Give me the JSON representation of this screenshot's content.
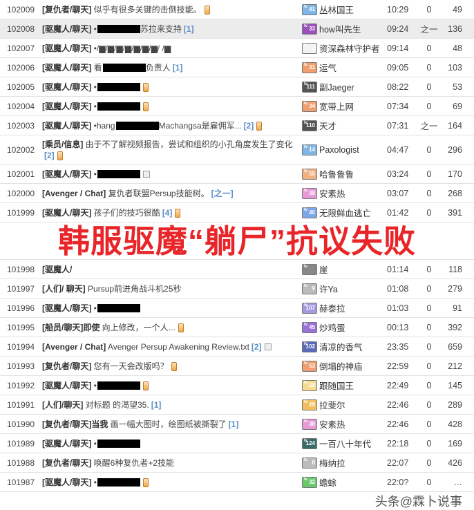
{
  "rows": [
    {
      "id": "102009",
      "cat": "[复仇者/聊天]",
      "text": "似乎有很多关键的击倒技能。",
      "redact": false,
      "tail": "",
      "count": "",
      "icon": "memo",
      "level": "41",
      "lvcolor": "#7fb6e6",
      "name": "丛林国王",
      "time": "10:29",
      "replies": "0",
      "views": "49"
    },
    {
      "id": "102008",
      "cat": "[驱魔人/聊天]",
      "text": "•",
      "redact": true,
      "tail": "苏拉来支持",
      "count": "[1]",
      "icon": "",
      "level": "33",
      "lvcolor": "#9a52b8",
      "name": "how叫先生",
      "time": "09:24",
      "replies": "之一",
      "views": "136",
      "hl": true
    },
    {
      "id": "102007",
      "cat": "[驱魔人/聊天]",
      "text": "•/▆/▆/▆/▆/▆/▆/▆/ /▆",
      "redact": false,
      "tail": "",
      "count": "",
      "icon": "",
      "level": "2",
      "lvcolor": "#f2f2f2",
      "name": "资深森林守护者",
      "time": "09:14",
      "replies": "0",
      "views": "48"
    },
    {
      "id": "102006",
      "cat": "[驱魔人/聊天]",
      "text": "看",
      "redact": true,
      "tail": "负责人",
      "count": "[1]",
      "icon": "",
      "level": "31",
      "lvcolor": "#f0a070",
      "name": "运气",
      "time": "09:05",
      "replies": "0",
      "views": "103"
    },
    {
      "id": "102005",
      "cat": "[驱魔人/聊天]",
      "text": "•",
      "redact": true,
      "tail": "",
      "count": "",
      "icon": "memo",
      "level": "111",
      "lvcolor": "#555",
      "name": "副Jaeger",
      "time": "08:22",
      "replies": "0",
      "views": "53"
    },
    {
      "id": "102004",
      "cat": "[驱魔人/聊天]",
      "text": "•",
      "redact": true,
      "tail": "",
      "count": "",
      "icon": "memo",
      "level": "34",
      "lvcolor": "#f0a070",
      "name": "宽带上网",
      "time": "07:34",
      "replies": "0",
      "views": "69"
    },
    {
      "id": "102003",
      "cat": "[驱魔人/聊天]",
      "text": " •hang",
      "redact": true,
      "tail": "Machangsa是雇佣军...",
      "count": "[2]",
      "icon": "memo",
      "level": "110",
      "lvcolor": "#555",
      "name": "天才",
      "time": "07:31",
      "replies": "之一",
      "views": "164"
    },
    {
      "id": "102002",
      "cat": "[乘员/信息]",
      "text": "由于不了解视频报告，尝试和组织的小孔角度发生了变化",
      "redact": false,
      "tail": "",
      "count": "[2]",
      "icon": "memo",
      "level": "14",
      "lvcolor": "#7fb6e6",
      "name": "Paxologist",
      "time": "04:47",
      "replies": "0",
      "views": "296",
      "tall": true
    },
    {
      "id": "102001",
      "cat": "[驱魔人/聊天]",
      "text": "•",
      "redact": true,
      "tail": "",
      "count": "",
      "icon": "image",
      "level": "55",
      "lvcolor": "#f0b080",
      "name": "哈鲁鲁鲁",
      "time": "03:24",
      "replies": "0",
      "views": "170"
    },
    {
      "id": "102000",
      "cat": "[Avenger / Chat]",
      "text": "复仇者联盟Persup技能树。",
      "redact": false,
      "tail": "",
      "count": "[之一]",
      "icon": "",
      "level": "38",
      "lvcolor": "#e79ad8",
      "name": "安素热",
      "time": "03:07",
      "replies": "0",
      "views": "268"
    },
    {
      "id": "101999",
      "cat": "[驱魔人/聊天]",
      "text": "孩子们的技巧很酷",
      "redact": false,
      "tail": "",
      "count": "[4]",
      "icon": "memo",
      "level": "40",
      "lvcolor": "#7fa6e6",
      "name": "无限鲜血逃亡",
      "time": "01:42",
      "replies": "0",
      "views": "391"
    },
    {
      "id": "101998",
      "cat": "[驱魔人/",
      "text": "",
      "redact": false,
      "tail": "",
      "count": "",
      "icon": "",
      "level": "",
      "lvcolor": "#888",
      "name": "崖",
      "time": "01:14",
      "replies": "0",
      "views": "118"
    },
    {
      "id": "101997",
      "cat": "[人们/ 聊天]",
      "text": "Pursup前进角战斗机25秒",
      "redact": false,
      "tail": "",
      "count": "",
      "icon": "",
      "level": "9",
      "lvcolor": "#bbb",
      "name": "许Ya",
      "time": "01:08",
      "replies": "0",
      "views": "279"
    },
    {
      "id": "101996",
      "cat": "[驱魔人/聊天]",
      "text": "•",
      "redact": true,
      "tail": "",
      "count": "",
      "icon": "",
      "level": "107",
      "lvcolor": "#a89ae0",
      "name": "赫泰拉",
      "time": "01:03",
      "replies": "0",
      "views": "91"
    },
    {
      "id": "101995",
      "cat": "[船员/聊天]即使",
      "text": "向上修改，一个人...",
      "redact": false,
      "tail": "",
      "count": "",
      "icon": "memo",
      "level": "45",
      "lvcolor": "#9a72d8",
      "name": "炒鸡蛋",
      "time": "00:13",
      "replies": "0",
      "views": "392"
    },
    {
      "id": "101994",
      "cat": "[Avenger / Chat]",
      "text": "Avenger Persup Awakening Review.txt",
      "redact": false,
      "tail": "",
      "count": "[2]",
      "icon": "image",
      "level": "102",
      "lvcolor": "#5a6ab8",
      "name": "清凉的香气",
      "time": "23:35",
      "replies": "0",
      "views": "659"
    },
    {
      "id": "101993",
      "cat": "[复仇者/聊天]",
      "text": "您有一天会改版吗？",
      "redact": false,
      "tail": "",
      "count": "",
      "icon": "memo",
      "level": "53",
      "lvcolor": "#f0a070",
      "name": "倒塌的神庙",
      "time": "22:59",
      "replies": "0",
      "views": "212"
    },
    {
      "id": "101992",
      "cat": "[驱魔人/聊天]",
      "text": "•",
      "redact": true,
      "tail": "",
      "count": "",
      "icon": "memo",
      "level": "28",
      "lvcolor": "#f5dc90",
      "name": "跟随国王",
      "time": "22:49",
      "replies": "0",
      "views": "145"
    },
    {
      "id": "101991",
      "cat": "[人们/聊天]",
      "text": "对标题 的渴望35.",
      "redact": false,
      "tail": "",
      "count": "[1]",
      "icon": "",
      "level": "29",
      "lvcolor": "#f0c060",
      "name": "拉斐尔",
      "time": "22:46",
      "replies": "0",
      "views": "289"
    },
    {
      "id": "101990",
      "cat": "[复仇者/聊天]当我",
      "text": "画一幅大图时，绘图纸被撕裂了",
      "redact": false,
      "tail": "",
      "count": "[1]",
      "icon": "",
      "level": "38",
      "lvcolor": "#e79ad8",
      "name": "安素热",
      "time": "22:46",
      "replies": "0",
      "views": "428"
    },
    {
      "id": "101989",
      "cat": "[驱魔人/聊天]",
      "text": "•",
      "redact": true,
      "tail": "",
      "count": "",
      "icon": "",
      "level": "124",
      "lvcolor": "#3a6a6a",
      "name": "一百八十年代",
      "time": "22:18",
      "replies": "0",
      "views": "169"
    },
    {
      "id": "101988",
      "cat": "[复仇者/聊天]",
      "text": "唤醒6种复仇者+2技能",
      "redact": false,
      "tail": "",
      "count": "",
      "icon": "",
      "level": "8",
      "lvcolor": "#bbb",
      "name": "梅纳拉",
      "time": "22:07",
      "replies": "0",
      "views": "426"
    },
    {
      "id": "101987",
      "cat": "[驱魔人/聊天]",
      "text": "•",
      "redact": true,
      "tail": "",
      "count": "",
      "icon": "memo",
      "level": "32",
      "lvcolor": "#6cc86c",
      "name": "蟾蜍",
      "time": "22:0?",
      "replies": "0",
      "views": "…"
    }
  ],
  "overlay_title": "韩服驱魔“躺尸”抗议失败",
  "watermark": "头条@霖卜说事"
}
